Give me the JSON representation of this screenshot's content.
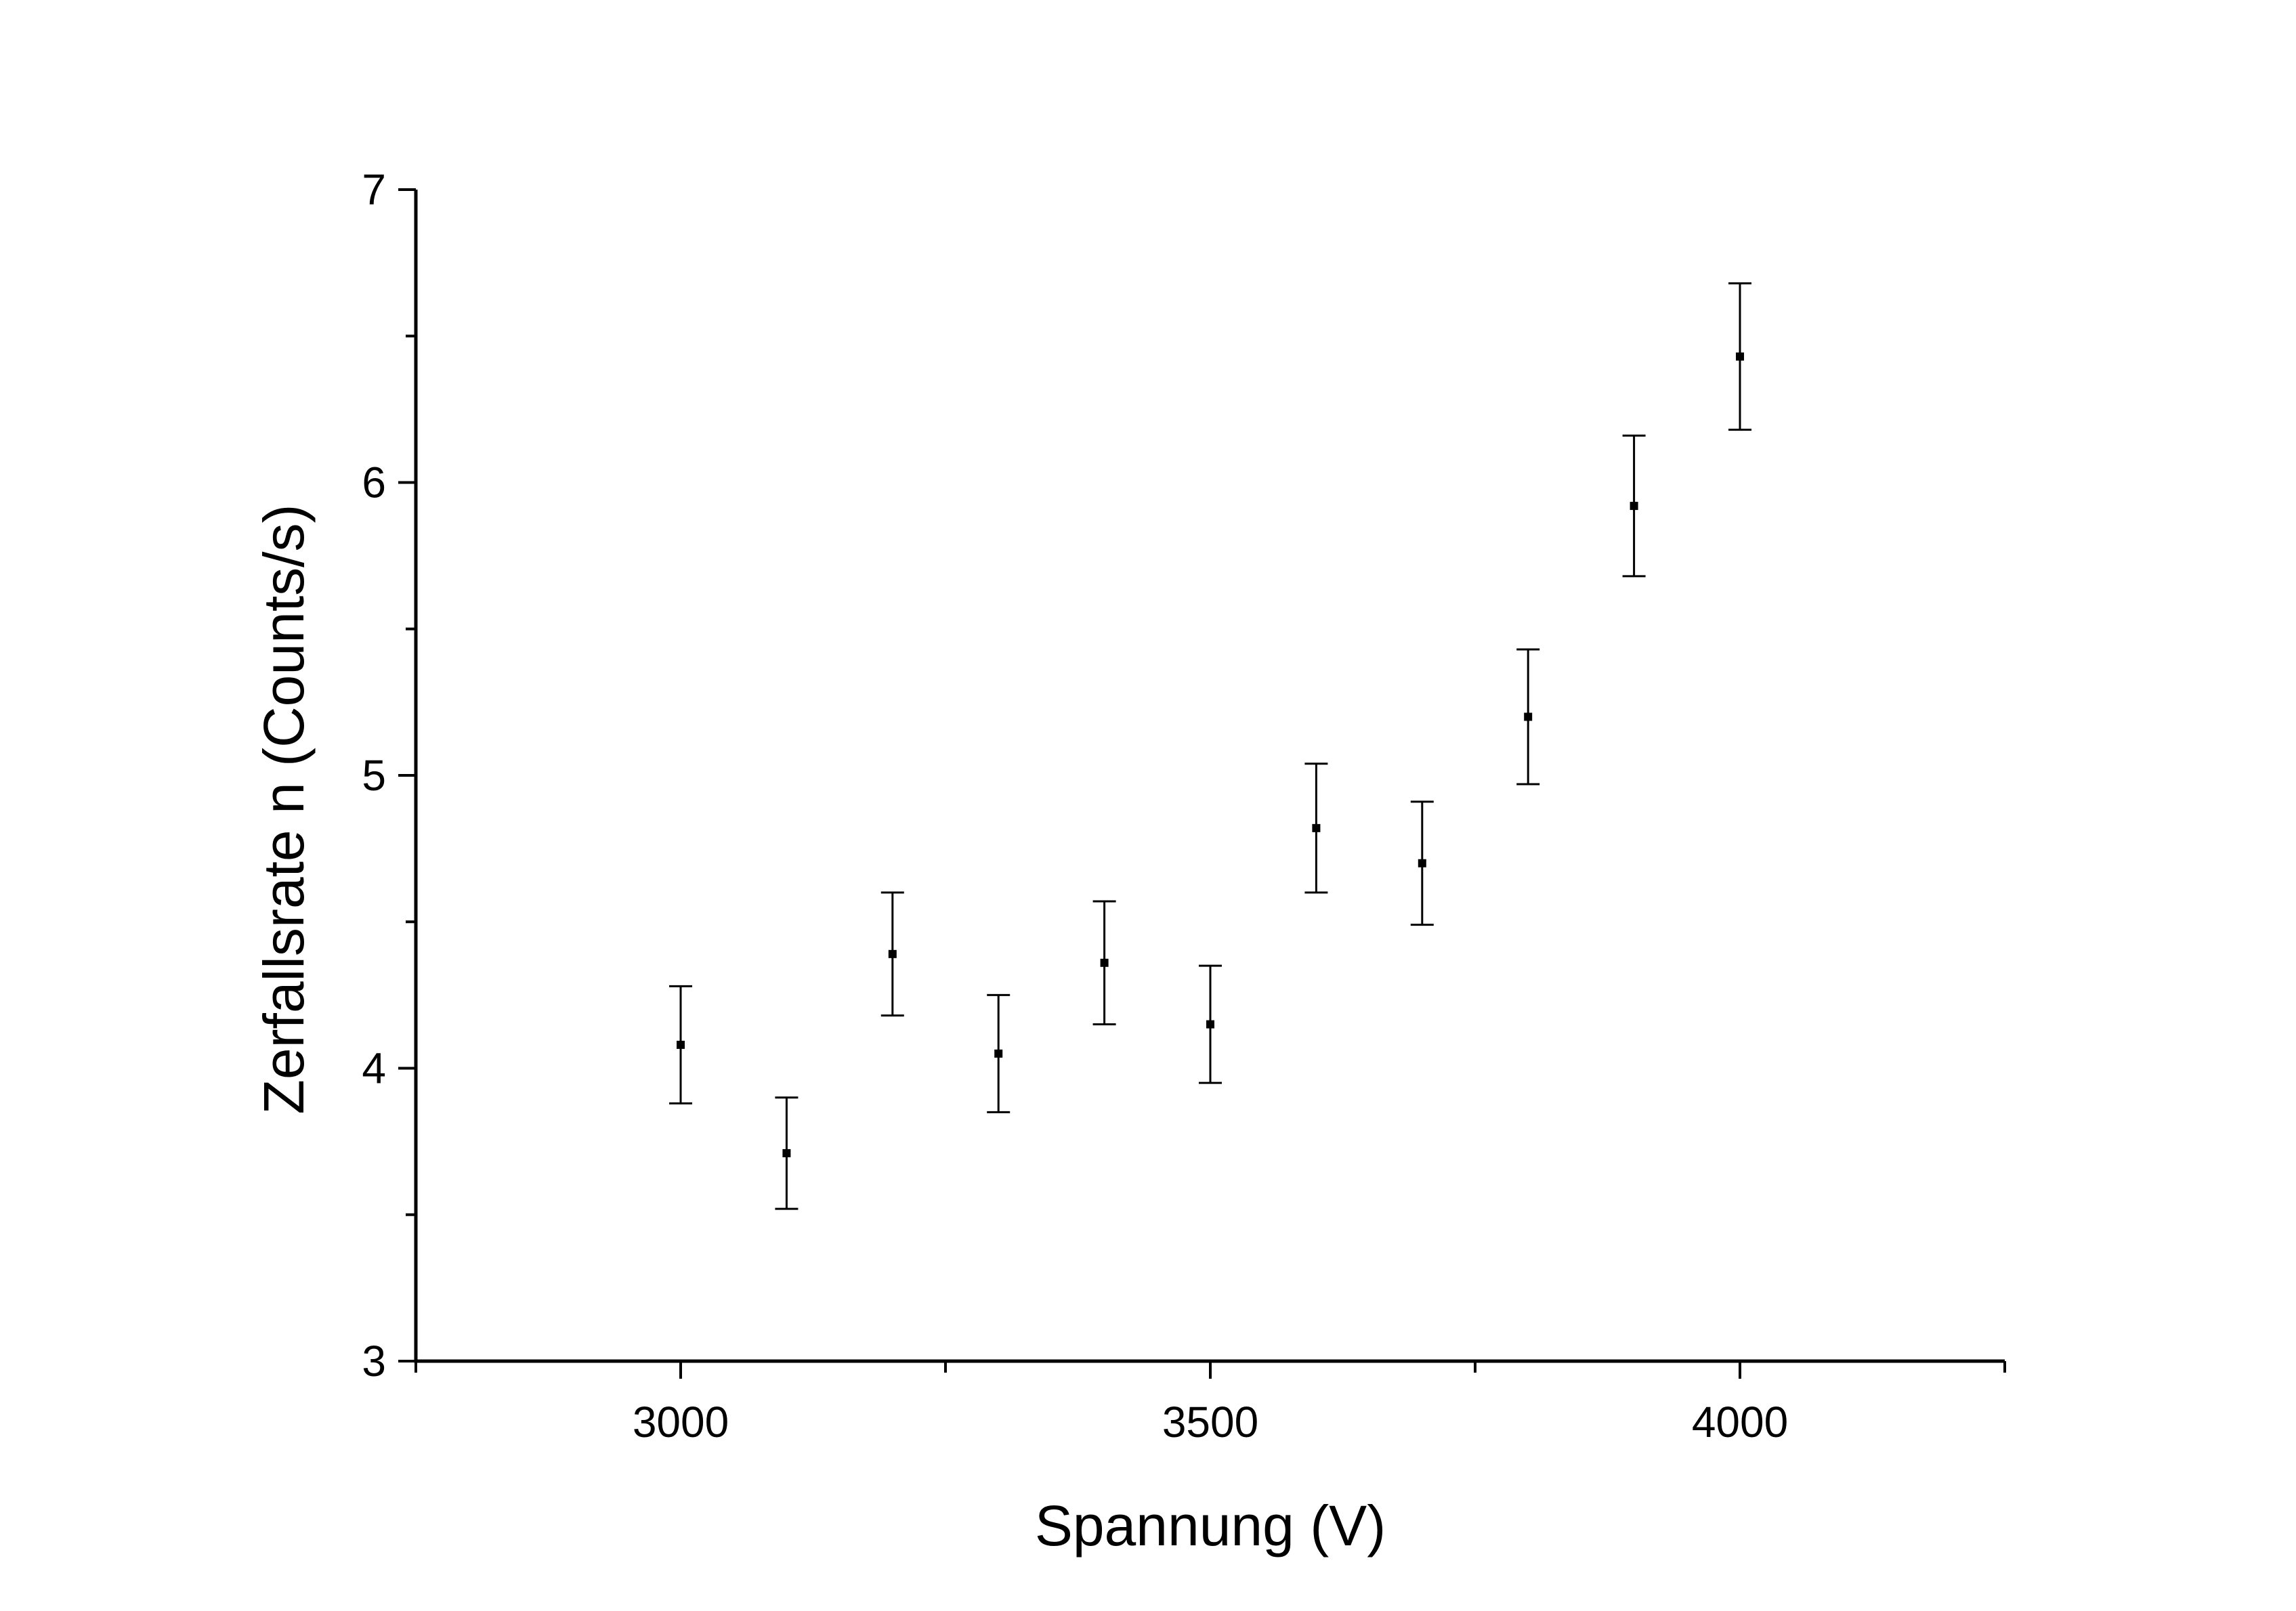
{
  "chart_data": {
    "type": "scatter",
    "title": "",
    "xlabel": "Spannung (V)",
    "ylabel": "Zerfallsrate n (Counts/s)",
    "xlim": [
      2750,
      4250
    ],
    "ylim": [
      3,
      7
    ],
    "x_ticks": [
      3000,
      3500,
      4000
    ],
    "x_minor_ticks": [
      2750,
      3250,
      3750,
      4250
    ],
    "y_ticks": [
      3,
      4,
      5,
      6,
      7
    ],
    "y_minor_ticks": [
      3.5,
      4.5,
      5.5,
      6.5
    ],
    "grid": false,
    "legend": "none",
    "marker": "square",
    "color": "#000000",
    "series": [
      {
        "x": [
          3000,
          3100,
          3200,
          3300,
          3400,
          3500,
          3600,
          3700,
          3800,
          3900,
          4000
        ],
        "y": [
          4.08,
          3.71,
          4.39,
          4.05,
          4.36,
          4.15,
          4.82,
          4.7,
          5.2,
          5.92,
          6.43
        ],
        "yerr": [
          0.2,
          0.19,
          0.21,
          0.2,
          0.21,
          0.2,
          0.22,
          0.21,
          0.23,
          0.24,
          0.25
        ]
      }
    ]
  }
}
